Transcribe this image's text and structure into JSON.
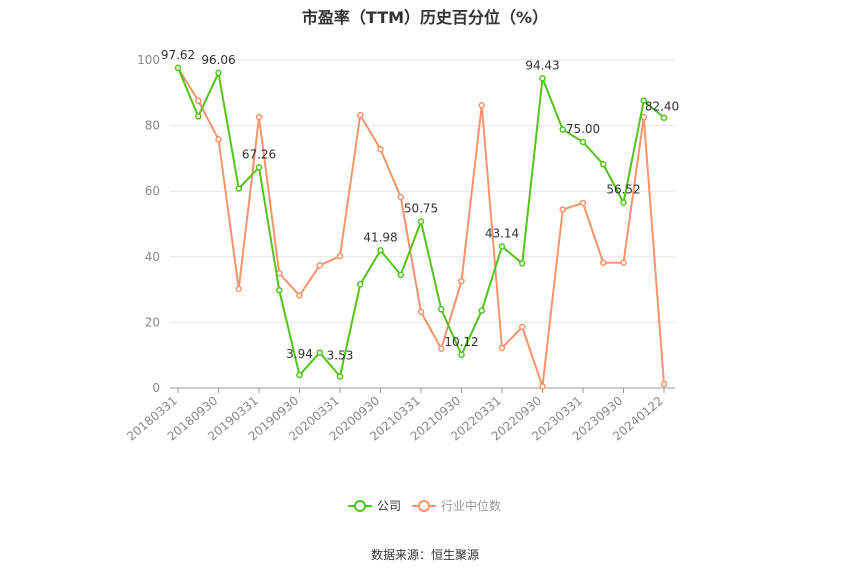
{
  "chart_data": {
    "type": "line",
    "title": "市盈率（TTM）历史百分位（%）",
    "source": "数据来源：恒生聚源",
    "ylim": [
      0,
      100
    ],
    "yticks": [
      0,
      20,
      40,
      60,
      80,
      100
    ],
    "grid": true,
    "legend_position": "bottom",
    "x_tick_labels": [
      "20180331",
      "20180930",
      "20190331",
      "20190930",
      "20200331",
      "20200930",
      "20210331",
      "20210930",
      "20220331",
      "20220930",
      "20230331",
      "20230930",
      "20240122"
    ],
    "series": [
      {
        "name": "公司",
        "color": "#52c41a",
        "values": [
          97.62,
          82.8,
          96.06,
          60.8,
          67.26,
          29.8,
          3.94,
          10.8,
          3.53,
          31.6,
          41.98,
          34.5,
          50.75,
          24.0,
          10.12,
          23.6,
          43.14,
          38.0,
          94.43,
          78.8,
          75.0,
          68.2,
          56.52,
          87.6,
          82.4
        ],
        "labeled_points": [
          {
            "index": 0,
            "text": "97.62"
          },
          {
            "index": 2,
            "text": "96.06"
          },
          {
            "index": 4,
            "text": "67.26"
          },
          {
            "index": 6,
            "text": "3.94"
          },
          {
            "index": 8,
            "text": "3.53"
          },
          {
            "index": 10,
            "text": "41.98"
          },
          {
            "index": 12,
            "text": "50.75"
          },
          {
            "index": 14,
            "text": "10.12"
          },
          {
            "index": 16,
            "text": "43.14"
          },
          {
            "index": 18,
            "text": "94.43"
          },
          {
            "index": 20,
            "text": "75.00"
          },
          {
            "index": 22,
            "text": "56.52"
          },
          {
            "index": 24,
            "text": "82.40"
          }
        ]
      },
      {
        "name": "行业中位数",
        "color": "#f5946a",
        "values": [
          97.6,
          87.6,
          75.8,
          30.2,
          82.6,
          35.0,
          28.2,
          37.4,
          40.2,
          83.2,
          72.8,
          58.2,
          23.2,
          12.0,
          32.6,
          86.2,
          12.2,
          18.6,
          0.5,
          54.4,
          56.4,
          38.2,
          38.2,
          82.6,
          1.2
        ]
      }
    ]
  }
}
